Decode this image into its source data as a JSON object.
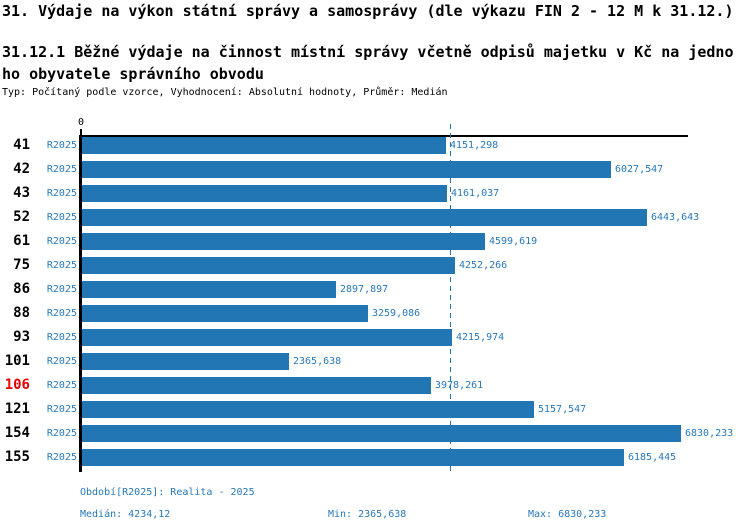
{
  "header": {
    "title": "31. Výdaje na výkon státní správy a samosprávy (dle výkazu FIN 2 - 12 M k 31.12.)",
    "subtitle_lines": [
      "31.12.1 Běžné výdaje na činnost místní správy včetně odpisů majetku v Kč na jedno",
      "ho obyvatele správního obvodu"
    ],
    "meta": "Typ: Počítaný podle vzorce, Vyhodnocení: Absolutní hodnoty, Průměr: Medián"
  },
  "chart_data": {
    "type": "bar",
    "orientation": "horizontal",
    "title": "31.12.1 Běžné výdaje na činnost místní správy včetně odpisů majetku v Kč na jednoho obyvatele správního obvodu",
    "categories": [
      "41",
      "42",
      "43",
      "52",
      "61",
      "75",
      "86",
      "88",
      "93",
      "101",
      "106",
      "121",
      "154",
      "155"
    ],
    "series_label": "R2025",
    "values": [
      4151.298,
      6027.547,
      4161.037,
      6443.643,
      4599.619,
      4252.266,
      2897.897,
      3259.086,
      4215.974,
      2365.638,
      3978.261,
      5157.547,
      6830.233,
      6185.445
    ],
    "value_labels": [
      "4151,298",
      "6027,547",
      "4161,037",
      "6443,643",
      "4599,619",
      "4252,266",
      "2897,897",
      "3259,086",
      "4215,974",
      "2365,638",
      "3978,261",
      "5157,547",
      "6830,233",
      "6185,445"
    ],
    "highlighted_category": "106",
    "axis_origin_label": "0",
    "median_line_value": 4234.12,
    "xlim": [
      0,
      6900
    ],
    "grid": false,
    "legend_position": "none",
    "bar_color": "#2276b4",
    "text_color": "#2878b8",
    "highlight_color": "#e60000"
  },
  "footer": {
    "period": "Období[R2025]: Realita - 2025",
    "median": "Medián: 4234,12",
    "min": "Min: 2365,638",
    "max": "Max: 6830,233"
  }
}
